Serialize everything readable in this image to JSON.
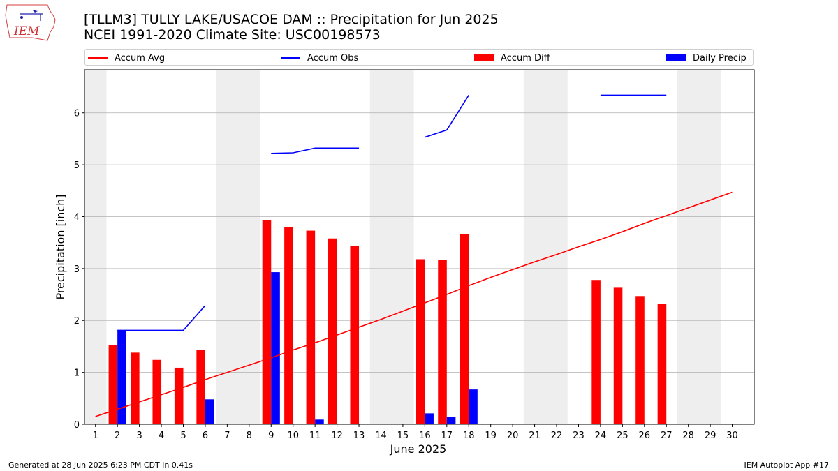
{
  "header": {
    "title": "[TLLM3] TULLY LAKE/USACOE DAM :: Precipitation for Jun 2025",
    "subtitle": "NCEI 1991-2020 Climate Site: USC00198573",
    "logo_text": "IEM"
  },
  "footer": {
    "left": "Generated at 28 Jun 2025 6:23 PM CDT in 0.41s",
    "right": "IEM Autoplot App #17"
  },
  "colors": {
    "avg": "#ff0000",
    "obs": "#0000ff",
    "diff": "#ff0000",
    "daily": "#0000ff",
    "weekend_band": "#eeeeee",
    "grid": "#b0b0b0"
  },
  "chart_data": {
    "type": "bar",
    "xlabel": "June 2025",
    "ylabel": "Precipitation [inch]",
    "xlim": [
      0.5,
      31.0
    ],
    "ylim": [
      0,
      6.83
    ],
    "yticks": [
      "0",
      "1",
      "2",
      "3",
      "4",
      "5",
      "6"
    ],
    "grid": "y",
    "legend": [
      "Accum Avg",
      "Accum Obs",
      "Accum Diff",
      "Daily Precip"
    ],
    "legend_placement": "top",
    "days": [
      "1",
      "2",
      "3",
      "4",
      "5",
      "6",
      "7",
      "8",
      "9",
      "10",
      "11",
      "12",
      "13",
      "14",
      "15",
      "16",
      "17",
      "18",
      "19",
      "20",
      "21",
      "22",
      "23",
      "24",
      "25",
      "26",
      "27",
      "28",
      "29",
      "30"
    ],
    "weekend_bands": [
      [
        0.5,
        1.5
      ],
      [
        6.5,
        8.5
      ],
      [
        13.5,
        15.5
      ],
      [
        20.5,
        22.5
      ],
      [
        27.5,
        29.5
      ]
    ],
    "series": [
      {
        "name": "Accum Avg",
        "type": "line",
        "values": [
          0.15,
          0.29,
          0.43,
          0.57,
          0.71,
          0.86,
          1.0,
          1.14,
          1.28,
          1.43,
          1.57,
          1.72,
          1.87,
          2.02,
          2.18,
          2.34,
          2.5,
          2.67,
          2.83,
          2.98,
          3.13,
          3.27,
          3.42,
          3.56,
          3.71,
          3.87,
          4.02,
          4.17,
          4.32,
          4.47
        ]
      },
      {
        "name": "Accum Obs",
        "type": "line",
        "segments": [
          {
            "x": [
              2,
              3,
              4,
              5,
              6
            ],
            "y": [
              1.81,
              1.81,
              1.81,
              1.81,
              2.29
            ]
          },
          {
            "x": [
              9,
              10,
              11,
              12,
              13
            ],
            "y": [
              5.22,
              5.23,
              5.32,
              5.32,
              5.32
            ]
          },
          {
            "x": [
              16,
              17,
              18
            ],
            "y": [
              5.53,
              5.67,
              6.34
            ]
          },
          {
            "x": [
              24,
              25,
              26,
              27
            ],
            "y": [
              6.34,
              6.34,
              6.34,
              6.34
            ]
          }
        ]
      },
      {
        "name": "Accum Diff",
        "type": "bar",
        "x": [
          2,
          3,
          4,
          5,
          6,
          9,
          10,
          11,
          12,
          13,
          16,
          17,
          18,
          24,
          25,
          26,
          27
        ],
        "values": [
          1.52,
          1.38,
          1.24,
          1.09,
          1.43,
          3.93,
          3.8,
          3.73,
          3.58,
          3.43,
          3.18,
          3.16,
          3.67,
          2.78,
          2.63,
          2.47,
          2.32
        ]
      },
      {
        "name": "Daily Precip",
        "type": "bar",
        "x": [
          2,
          6,
          9,
          10,
          11,
          16,
          17,
          18
        ],
        "values": [
          1.81,
          0.48,
          2.93,
          0.01,
          0.09,
          0.21,
          0.14,
          0.67
        ]
      }
    ]
  }
}
